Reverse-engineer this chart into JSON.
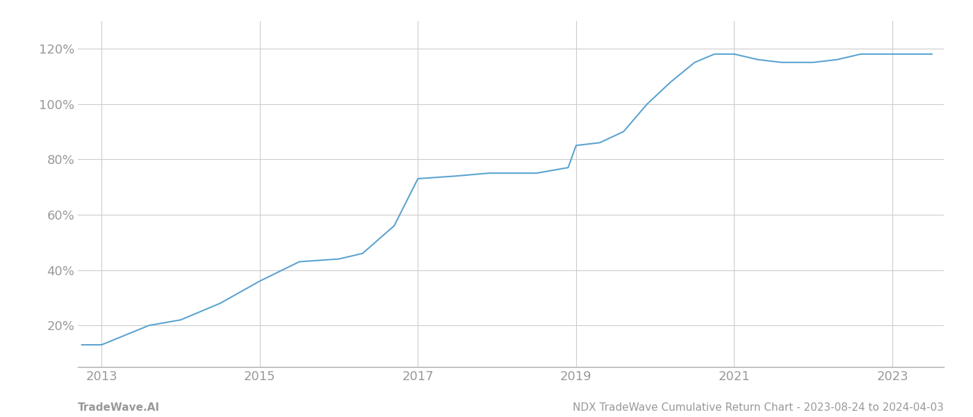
{
  "x_values": [
    2012.75,
    2013.0,
    2013.6,
    2014.0,
    2014.5,
    2015.0,
    2015.5,
    2016.0,
    2016.3,
    2016.7,
    2017.0,
    2017.5,
    2017.9,
    2018.0,
    2018.5,
    2018.9,
    2019.0,
    2019.3,
    2019.6,
    2019.9,
    2020.2,
    2020.5,
    2020.75,
    2021.0,
    2021.3,
    2021.6,
    2022.0,
    2022.3,
    2022.6,
    2023.0,
    2023.3,
    2023.5
  ],
  "y_values": [
    13,
    13,
    20,
    22,
    28,
    36,
    43,
    44,
    46,
    56,
    73,
    74,
    75,
    75,
    75,
    77,
    85,
    86,
    90,
    100,
    108,
    115,
    118,
    118,
    116,
    115,
    115,
    116,
    118,
    118,
    118,
    118
  ],
  "line_color": "#5ba3d0",
  "line_width": 1.5,
  "background_color": "#ffffff",
  "grid_color": "#cccccc",
  "tick_color": "#999999",
  "footer_left": "TradeWave.AI",
  "footer_right": "NDX TradeWave Cumulative Return Chart - 2023-08-24 to 2024-04-03",
  "x_ticks": [
    2013,
    2015,
    2017,
    2019,
    2021,
    2023
  ],
  "y_ticks": [
    20,
    40,
    60,
    80,
    100,
    120
  ],
  "xlim": [
    2012.7,
    2023.65
  ],
  "ylim": [
    5,
    130
  ]
}
